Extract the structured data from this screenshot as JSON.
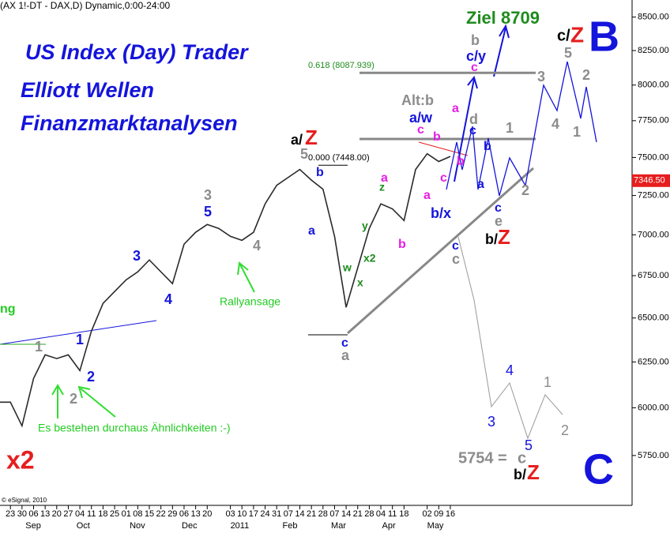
{
  "chart_data": {
    "type": "line",
    "header": "(AX 1!-DT - DAX,D) Dynamic,0:00-24:00",
    "title_lines": [
      "US Index (Day) Trader",
      "Elliott Wellen",
      "Finanzmarktanalysen"
    ],
    "color": "#2a2a2a",
    "log_scale_y": true,
    "x": [
      -0.9,
      0,
      1,
      2,
      3,
      4,
      5,
      6,
      7,
      8,
      9,
      10,
      11,
      12,
      13,
      14,
      15,
      16,
      17,
      18,
      19,
      20,
      21,
      22,
      23,
      24,
      25,
      26,
      27,
      28,
      29,
      30,
      31,
      32,
      33,
      34,
      35,
      36,
      37,
      38
    ],
    "values": [
      6030,
      6030,
      5904,
      6159,
      6290,
      6269,
      6290,
      6202,
      6425,
      6585,
      6655,
      6725,
      6773,
      6845,
      6773,
      6702,
      6942,
      7016,
      7065,
      7040,
      6991,
      6966,
      7016,
      7196,
      7316,
      7368,
      7420,
      7350,
      7291,
      6991,
      6562,
      6797,
      7040,
      7196,
      7164,
      7090,
      7420,
      7525,
      7473,
      7507
    ],
    "xlim": [
      -0.9,
      53.7
    ],
    "ylim": [
      5500,
      8600
    ],
    "yticks": [
      {
        "value": 5750,
        "label": "5750.00"
      },
      {
        "value": 6000,
        "label": "6000.00"
      },
      {
        "value": 6250,
        "label": "6250.00"
      },
      {
        "value": 6500,
        "label": "6500.00"
      },
      {
        "value": 6750,
        "label": "6750.00"
      },
      {
        "value": 7000,
        "label": "7000.00"
      },
      {
        "value": 7250,
        "label": "7250.00"
      },
      {
        "value": 7500,
        "label": "7500.00"
      },
      {
        "value": 7750,
        "label": "7750.00"
      },
      {
        "value": 8000,
        "label": "8000.00"
      },
      {
        "value": 8250,
        "label": "8250.00"
      },
      {
        "value": 8500,
        "label": "8500.00"
      }
    ],
    "xticks": [
      {
        "value": 0,
        "label": "23"
      },
      {
        "value": 1,
        "label": "30"
      },
      {
        "value": 2,
        "label": "06"
      },
      {
        "value": 3,
        "label": "13"
      },
      {
        "value": 4,
        "label": "20"
      },
      {
        "value": 5,
        "label": "27"
      },
      {
        "value": 6,
        "label": "04"
      },
      {
        "value": 7,
        "label": "11"
      },
      {
        "value": 8,
        "label": "18"
      },
      {
        "value": 9,
        "label": "25"
      },
      {
        "value": 10,
        "label": "01"
      },
      {
        "value": 11,
        "label": "08"
      },
      {
        "value": 12,
        "label": "15"
      },
      {
        "value": 13,
        "label": "22"
      },
      {
        "value": 14,
        "label": "29"
      },
      {
        "value": 15,
        "label": "06"
      },
      {
        "value": 16,
        "label": "13"
      },
      {
        "value": 17,
        "label": "20"
      },
      {
        "value": 19,
        "label": "03"
      },
      {
        "value": 20,
        "label": "10"
      },
      {
        "value": 21,
        "label": "17"
      },
      {
        "value": 22,
        "label": "24"
      },
      {
        "value": 23,
        "label": "31"
      },
      {
        "value": 24,
        "label": "07"
      },
      {
        "value": 25,
        "label": "14"
      },
      {
        "value": 26,
        "label": "21"
      },
      {
        "value": 27,
        "label": "28"
      },
      {
        "value": 28,
        "label": "07"
      },
      {
        "value": 29,
        "label": "14"
      },
      {
        "value": 30,
        "label": "21"
      },
      {
        "value": 31,
        "label": "28"
      },
      {
        "value": 32,
        "label": "04"
      },
      {
        "value": 33,
        "label": "11"
      },
      {
        "value": 34,
        "label": "18"
      },
      {
        "value": 36,
        "label": "02"
      },
      {
        "value": 37,
        "label": "09"
      },
      {
        "value": 38,
        "label": "16"
      }
    ],
    "month_labels": [
      {
        "value": 1.3,
        "label": "Sep"
      },
      {
        "value": 5.7,
        "label": "Oct"
      },
      {
        "value": 10.3,
        "label": "Nov"
      },
      {
        "value": 14.8,
        "label": "Dec"
      },
      {
        "value": 19,
        "label": "2011"
      },
      {
        "value": 23.5,
        "label": "Feb"
      },
      {
        "value": 27.7,
        "label": "Mar"
      },
      {
        "value": 32.1,
        "label": "Apr"
      },
      {
        "value": 36,
        "label": "May"
      }
    ],
    "fib_levels": [
      {
        "value": 8087.939,
        "label": "0.618 (8087.939)"
      },
      {
        "value": 7448,
        "label": "0.000 (7448.00)"
      }
    ],
    "last_price": {
      "value": 7346.5,
      "label": "7346.50"
    },
    "annotations": [
      "Ziel 8709",
      "B",
      "c/",
      "Z",
      "C",
      "x2",
      "a/",
      "Z",
      "b/",
      "Z",
      "b/",
      "Z",
      "5754 =",
      "c",
      "Es bestehen durchaus Ähnlichkeiten :-)",
      "Rallyansage",
      "ng",
      "Alt:b",
      "© eSignal, 2010",
      "1",
      "1",
      "2",
      "2",
      "3",
      "4",
      "3",
      "5",
      "4",
      "5",
      "b",
      "a",
      "c",
      "a",
      "w",
      "x",
      "x2",
      "y",
      "z",
      "a",
      "b",
      "a/w",
      "c",
      "b",
      "a",
      "c",
      "b/x",
      "c",
      "c",
      "a",
      "b",
      "b",
      "c/y",
      "c",
      "d",
      "c",
      "b",
      "a",
      "1",
      "c",
      "e",
      "2",
      "3",
      "4",
      "5",
      "2",
      "1",
      "3",
      "4",
      "5",
      "1",
      "2"
    ]
  }
}
